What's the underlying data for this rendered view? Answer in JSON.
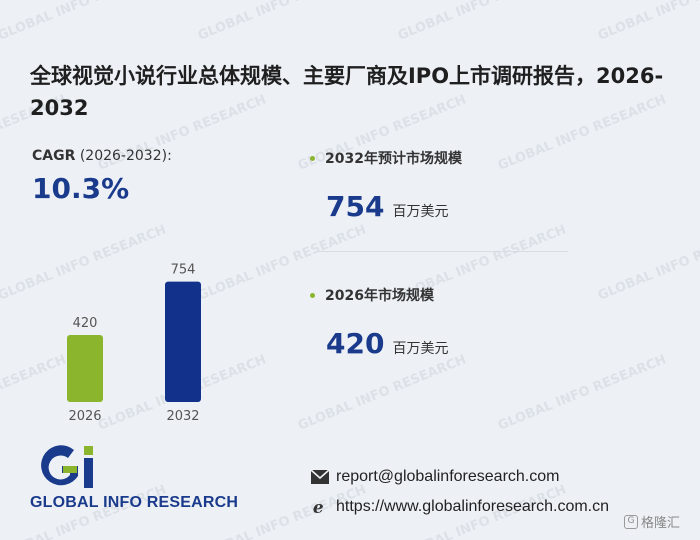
{
  "title": "全球视觉小说行业总体规模、主要厂商及IPO上市调研报告，2026-2032",
  "cagr": {
    "label_bold": "CAGR",
    "label_rest": " (2026-2032):",
    "value": "10.3%"
  },
  "stats": [
    {
      "heading": "2032年预计市场规模",
      "value": "754",
      "unit": "百万美元"
    },
    {
      "heading": "2026年市场规模",
      "value": "420",
      "unit": "百万美元"
    }
  ],
  "chart_data": {
    "type": "bar",
    "categories": [
      "2026",
      "2032"
    ],
    "values": [
      420,
      754
    ],
    "data_labels": [
      "420",
      "754"
    ],
    "colors": [
      "#8ab52c",
      "#12318a"
    ],
    "title": "",
    "xlabel": "",
    "ylabel": "",
    "ylim": [
      0,
      800
    ],
    "grid": false
  },
  "logo": {
    "text": "GLOBAL INFO RESEARCH"
  },
  "watermark": {
    "text": "GLOBAL INFO RESEARCH"
  },
  "contact": {
    "email": "report@globalinforesearch.com",
    "website": "https://www.globalinforesearch.com.cn"
  },
  "badge": {
    "text": "格隆汇"
  },
  "colors": {
    "accent_blue": "#1a3a8c",
    "accent_green": "#8ab52c",
    "background": "#edf1f6"
  }
}
